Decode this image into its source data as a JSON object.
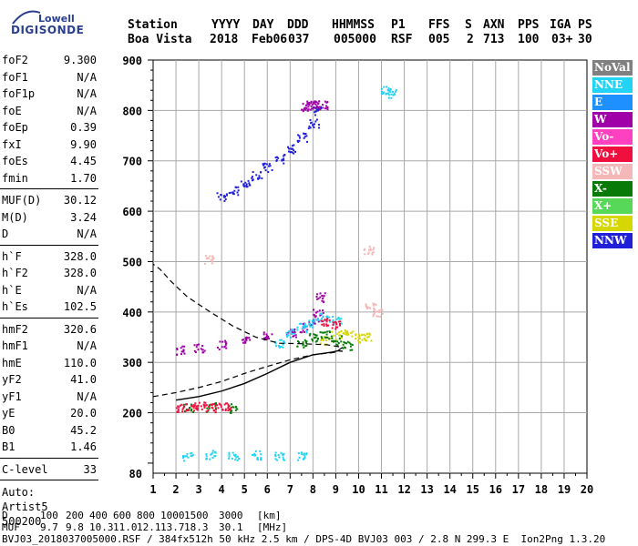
{
  "logo": {
    "line1": "Lowell",
    "line2": "DIGISONDE"
  },
  "header": {
    "labels": [
      "Station",
      "YYYY",
      "DAY",
      "DDD",
      "HHMMSS",
      "P1",
      "FFS",
      "S",
      "AXN",
      "PPS",
      "IGA",
      "PS"
    ],
    "values": [
      "Boa Vista",
      "2018",
      "Feb06",
      "037",
      "005000",
      "RSF",
      "005",
      "2",
      "713",
      "100",
      "03+",
      "30"
    ]
  },
  "params": {
    "group1": [
      {
        "name": "foF2",
        "value": "9.300"
      },
      {
        "name": "foF1",
        "value": "N/A"
      },
      {
        "name": "foF1p",
        "value": "N/A"
      },
      {
        "name": "foE",
        "value": "N/A"
      },
      {
        "name": "foEp",
        "value": "0.39"
      },
      {
        "name": "fxI",
        "value": "9.90"
      },
      {
        "name": "foEs",
        "value": "4.45"
      },
      {
        "name": "fmin",
        "value": "1.70"
      }
    ],
    "group2": [
      {
        "name": "MUF(D)",
        "value": "30.12"
      },
      {
        "name": "M(D)",
        "value": "3.24"
      },
      {
        "name": "D",
        "value": "N/A"
      }
    ],
    "group3": [
      {
        "name": "h`F",
        "value": "328.0"
      },
      {
        "name": "h`F2",
        "value": "328.0"
      },
      {
        "name": "h`E",
        "value": "N/A"
      },
      {
        "name": "h`Es",
        "value": "102.5"
      }
    ],
    "group4": [
      {
        "name": "hmF2",
        "value": "320.6"
      },
      {
        "name": "hmF1",
        "value": "N/A"
      },
      {
        "name": "hmE",
        "value": "110.0"
      },
      {
        "name": "yF2",
        "value": "41.0"
      },
      {
        "name": "yF1",
        "value": "N/A"
      },
      {
        "name": "yE",
        "value": "20.0"
      },
      {
        "name": "B0",
        "value": "45.2"
      },
      {
        "name": "B1",
        "value": "1.46"
      }
    ],
    "group5": [
      {
        "name": "C-level",
        "value": "33"
      }
    ],
    "autoscale": [
      "Auto:",
      "Artist5",
      "500200"
    ]
  },
  "footer": {
    "row1_label": "D",
    "row1_values": [
      "100",
      "200",
      "400",
      "600",
      "800",
      "1000",
      "1500",
      "3000",
      "[km]"
    ],
    "row2_label": "MUF",
    "row2_values": [
      "9.7",
      "9.8",
      "10.3",
      "11.0",
      "12.1",
      "13.7",
      "18.3",
      "30.1",
      "[MHz]"
    ],
    "info": "BVJ03_2018037005000.RSF / 384fx512h 50 kHz 2.5 km / DPS-4D BVJ03 003 / 2.8 N 299.3 E  Ion2Png 1.3.20"
  },
  "legend": [
    {
      "label": "NoVal",
      "color": "#808080"
    },
    {
      "label": "NNE",
      "color": "#22d3f5"
    },
    {
      "label": "E",
      "color": "#1e90ff"
    },
    {
      "label": "W",
      "color": "#a000a8"
    },
    {
      "label": "Vo-",
      "color": "#ff40c0"
    },
    {
      "label": "Vo+",
      "color": "#f01040"
    },
    {
      "label": "SSW",
      "color": "#f5b8b8"
    },
    {
      "label": "X-",
      "color": "#087a08"
    },
    {
      "label": "X+",
      "color": "#58d858"
    },
    {
      "label": "SSE",
      "color": "#d6d600"
    },
    {
      "label": "NNW",
      "color": "#2020d8"
    }
  ],
  "chart_data": {
    "type": "scatter",
    "xlim": [
      1,
      20
    ],
    "ylim": [
      80,
      900
    ],
    "x_ticks": [
      "1",
      "2",
      "3",
      "4",
      "5",
      "6",
      "7",
      "8",
      "9",
      "10",
      "11",
      "12",
      "13",
      "14",
      "15",
      "16",
      "17",
      "18",
      "19",
      "20"
    ],
    "y_ticks": [
      "80",
      "200",
      "300",
      "400",
      "500",
      "600",
      "700",
      "800",
      "900"
    ],
    "xlabel": "",
    "ylabel": "",
    "grid": true,
    "series": [
      {
        "name": "NNW",
        "color": "#2020d8",
        "x": [
          4.0,
          4.5,
          5.0,
          5.5,
          6.0,
          6.5,
          7.0,
          7.5,
          8.0,
          8.1
        ],
        "y": [
          630,
          642,
          655,
          672,
          688,
          705,
          725,
          748,
          775,
          800
        ]
      },
      {
        "name": "W",
        "color": "#a000a8",
        "x": [
          7.6,
          7.8,
          8.0,
          8.4,
          2.2,
          3.0,
          4.0,
          5.0,
          6.0,
          7.0,
          7.5,
          8.0,
          8.2,
          8.3
        ],
        "y": [
          808,
          812,
          815,
          812,
          325,
          330,
          336,
          345,
          355,
          360,
          370,
          380,
          400,
          430
        ]
      },
      {
        "name": "NNE",
        "color": "#22d3f5",
        "x": [
          6.5,
          7.0,
          7.5,
          8.0,
          8.5,
          9.0,
          2.5,
          3.5,
          4.5,
          5.5,
          6.5,
          7.5,
          11.2,
          11.4
        ],
        "y": [
          340,
          360,
          370,
          380,
          390,
          385,
          115,
          118,
          116,
          117,
          116,
          115,
          840,
          835
        ]
      },
      {
        "name": "SSE",
        "color": "#d6d600",
        "x": [
          8.5,
          9.0,
          9.5,
          10.0,
          10.3
        ],
        "y": [
          345,
          355,
          360,
          350,
          350
        ]
      },
      {
        "name": "X-",
        "color": "#087a08",
        "x": [
          7.5,
          8.0,
          8.5,
          9.0,
          9.5,
          2.5,
          3.5,
          4.5
        ],
        "y": [
          340,
          350,
          355,
          345,
          335,
          210,
          212,
          210
        ]
      },
      {
        "name": "Vo+",
        "color": "#f01040",
        "x": [
          2.2,
          2.6,
          3.0,
          3.4,
          3.8,
          4.2,
          8.5,
          9.0
        ],
        "y": [
          210,
          212,
          215,
          213,
          211,
          212,
          380,
          375
        ]
      },
      {
        "name": "SSW",
        "color": "#f5b8b8",
        "x": [
          3.4,
          10.4,
          10.5,
          10.8
        ],
        "y": [
          505,
          525,
          410,
          400
        ]
      }
    ],
    "profile_solid": {
      "x": [
        2.0,
        3.0,
        4.0,
        5.0,
        6.0,
        7.0,
        8.0,
        8.8,
        9.1,
        9.3
      ],
      "y": [
        225,
        232,
        243,
        258,
        278,
        300,
        315,
        320,
        323,
        322
      ]
    },
    "profile_dashed": {
      "x": [
        1.0,
        2.0,
        3.0,
        4.0,
        5.0,
        6.0,
        7.0,
        8.0,
        9.0,
        9.3,
        8.6,
        7.5,
        6.5,
        5.5,
        4.5,
        3.5,
        2.5,
        1.8,
        1.3,
        1.0
      ],
      "y": [
        232,
        240,
        250,
        262,
        278,
        292,
        305,
        315,
        320,
        330,
        335,
        337,
        338,
        350,
        372,
        400,
        430,
        460,
        485,
        495
      ]
    }
  }
}
